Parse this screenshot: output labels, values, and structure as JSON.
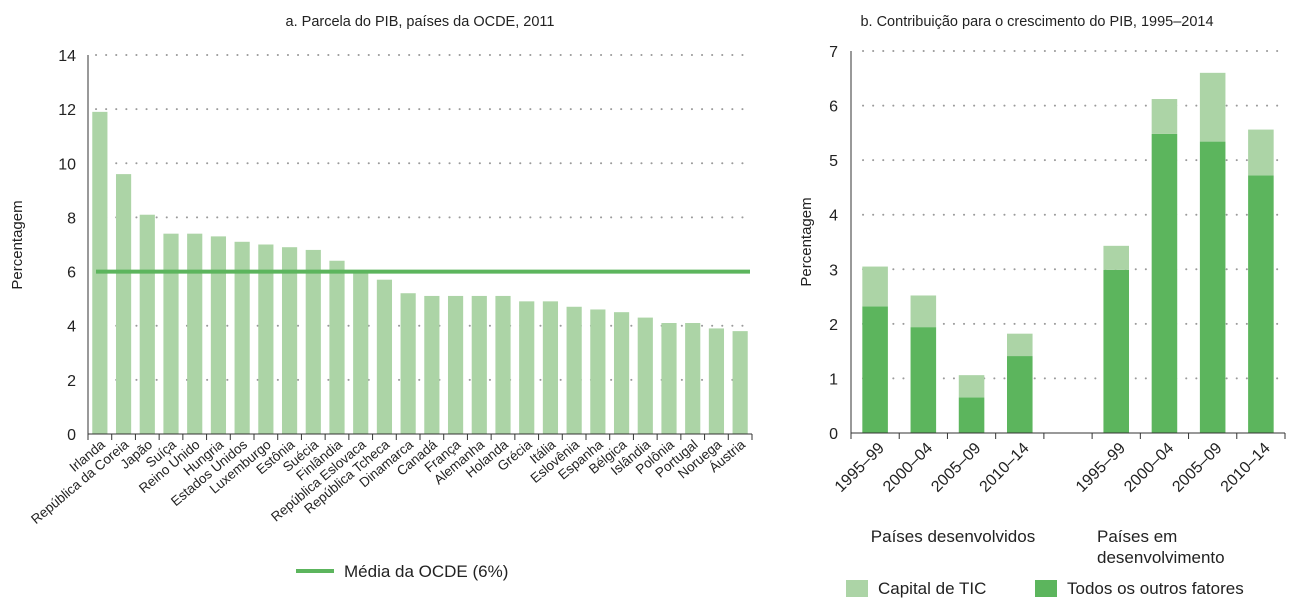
{
  "colors": {
    "light": "#acd4a6",
    "dark": "#5cb55d",
    "avg_line": "#5cb55d"
  },
  "chart_data": [
    {
      "type": "bar",
      "title": "a. Parcela do PIB, países da OCDE, 2011",
      "ylabel": "Percentagem",
      "ylim": [
        0,
        14
      ],
      "yticks": [
        0,
        2,
        4,
        6,
        8,
        10,
        12,
        14
      ],
      "grid": true,
      "categories": [
        "Irlanda",
        "República da Coreia",
        "Japão",
        "Suíça",
        "Reino Unido",
        "Hungria",
        "Estados Unidos",
        "Luxemburgo",
        "Estônia",
        "Suécia",
        "Finlândia",
        "República Eslovaca",
        "República Tcheca",
        "Dinamarca",
        "Canadá",
        "França",
        "Alemanha",
        "Holanda",
        "Grécia",
        "Itália",
        "Eslovênia",
        "Espanha",
        "Bélgica",
        "Islândia",
        "Polônia",
        "Portugal",
        "Noruega",
        "Áustria"
      ],
      "values": [
        11.9,
        9.6,
        8.1,
        7.4,
        7.4,
        7.3,
        7.1,
        7.0,
        6.9,
        6.8,
        6.4,
        6.0,
        5.7,
        5.2,
        5.1,
        5.1,
        5.1,
        5.1,
        4.9,
        4.9,
        4.7,
        4.6,
        4.5,
        4.3,
        4.1,
        4.1,
        3.9,
        3.8
      ],
      "reference_line": {
        "value": 6,
        "label": "Média da OCDE (6%)"
      },
      "legend_position": "bottom"
    },
    {
      "type": "bar",
      "stacked": true,
      "title": "b. Contribuição para o crescimento do PIB, 1995–2014",
      "ylabel": "Percentagem",
      "ylim": [
        0,
        7
      ],
      "yticks": [
        0,
        1,
        2,
        3,
        4,
        5,
        6,
        7
      ],
      "grid": true,
      "groups": [
        {
          "label": "Países desenvolvidos",
          "categories": [
            "1995–99",
            "2000–04",
            "2005–09",
            "2010–14"
          ]
        },
        {
          "label": "Países em desenvolvimento",
          "categories": [
            "1995–99",
            "2000–04",
            "2005–09",
            "2010–14"
          ]
        }
      ],
      "series": [
        {
          "name": "Todos os outros fatores",
          "values": [
            2.32,
            1.94,
            0.65,
            1.41,
            2.99,
            5.48,
            5.34,
            4.72
          ]
        },
        {
          "name": "Capital de TIC",
          "values": [
            0.73,
            0.58,
            0.41,
            0.41,
            0.44,
            0.64,
            1.26,
            0.84
          ]
        }
      ],
      "legend_position": "bottom"
    }
  ]
}
